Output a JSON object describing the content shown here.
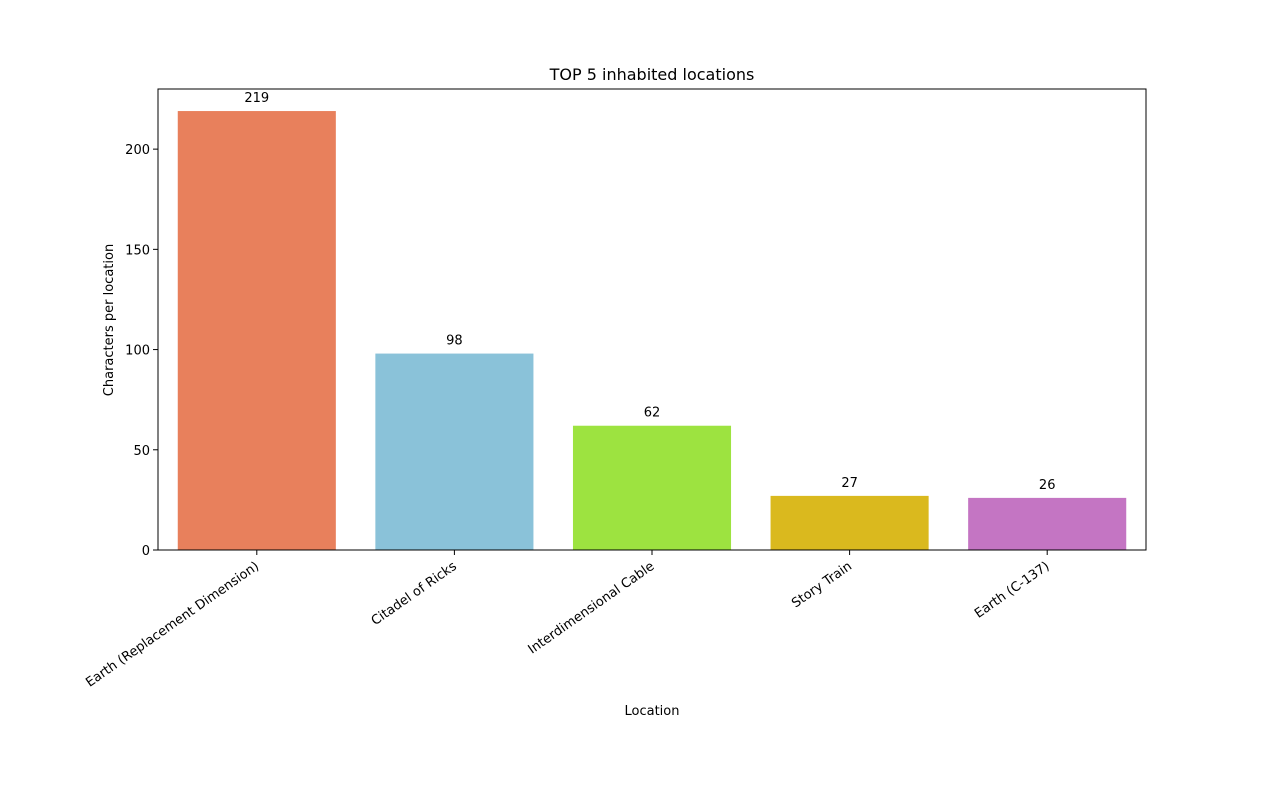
{
  "chart_data": {
    "type": "bar",
    "title": "TOP 5 inhabited locations",
    "xlabel": "Location",
    "ylabel": "Characters per location",
    "categories": [
      "Earth (Replacement Dimension)",
      "Citadel of Ricks",
      "Interdimensional Cable",
      "Story Train",
      "Earth (C-137)"
    ],
    "values": [
      219,
      98,
      62,
      27,
      26
    ],
    "data_labels": [
      "219",
      "98",
      "62",
      "27",
      "26"
    ],
    "colors": [
      "#E8805C",
      "#8AC2D9",
      "#9DE340",
      "#DAB91E",
      "#C475C3"
    ],
    "ylim": [
      0,
      230
    ],
    "yticks": [
      0,
      50,
      100,
      150,
      200
    ],
    "grid": false,
    "legend": "none"
  }
}
